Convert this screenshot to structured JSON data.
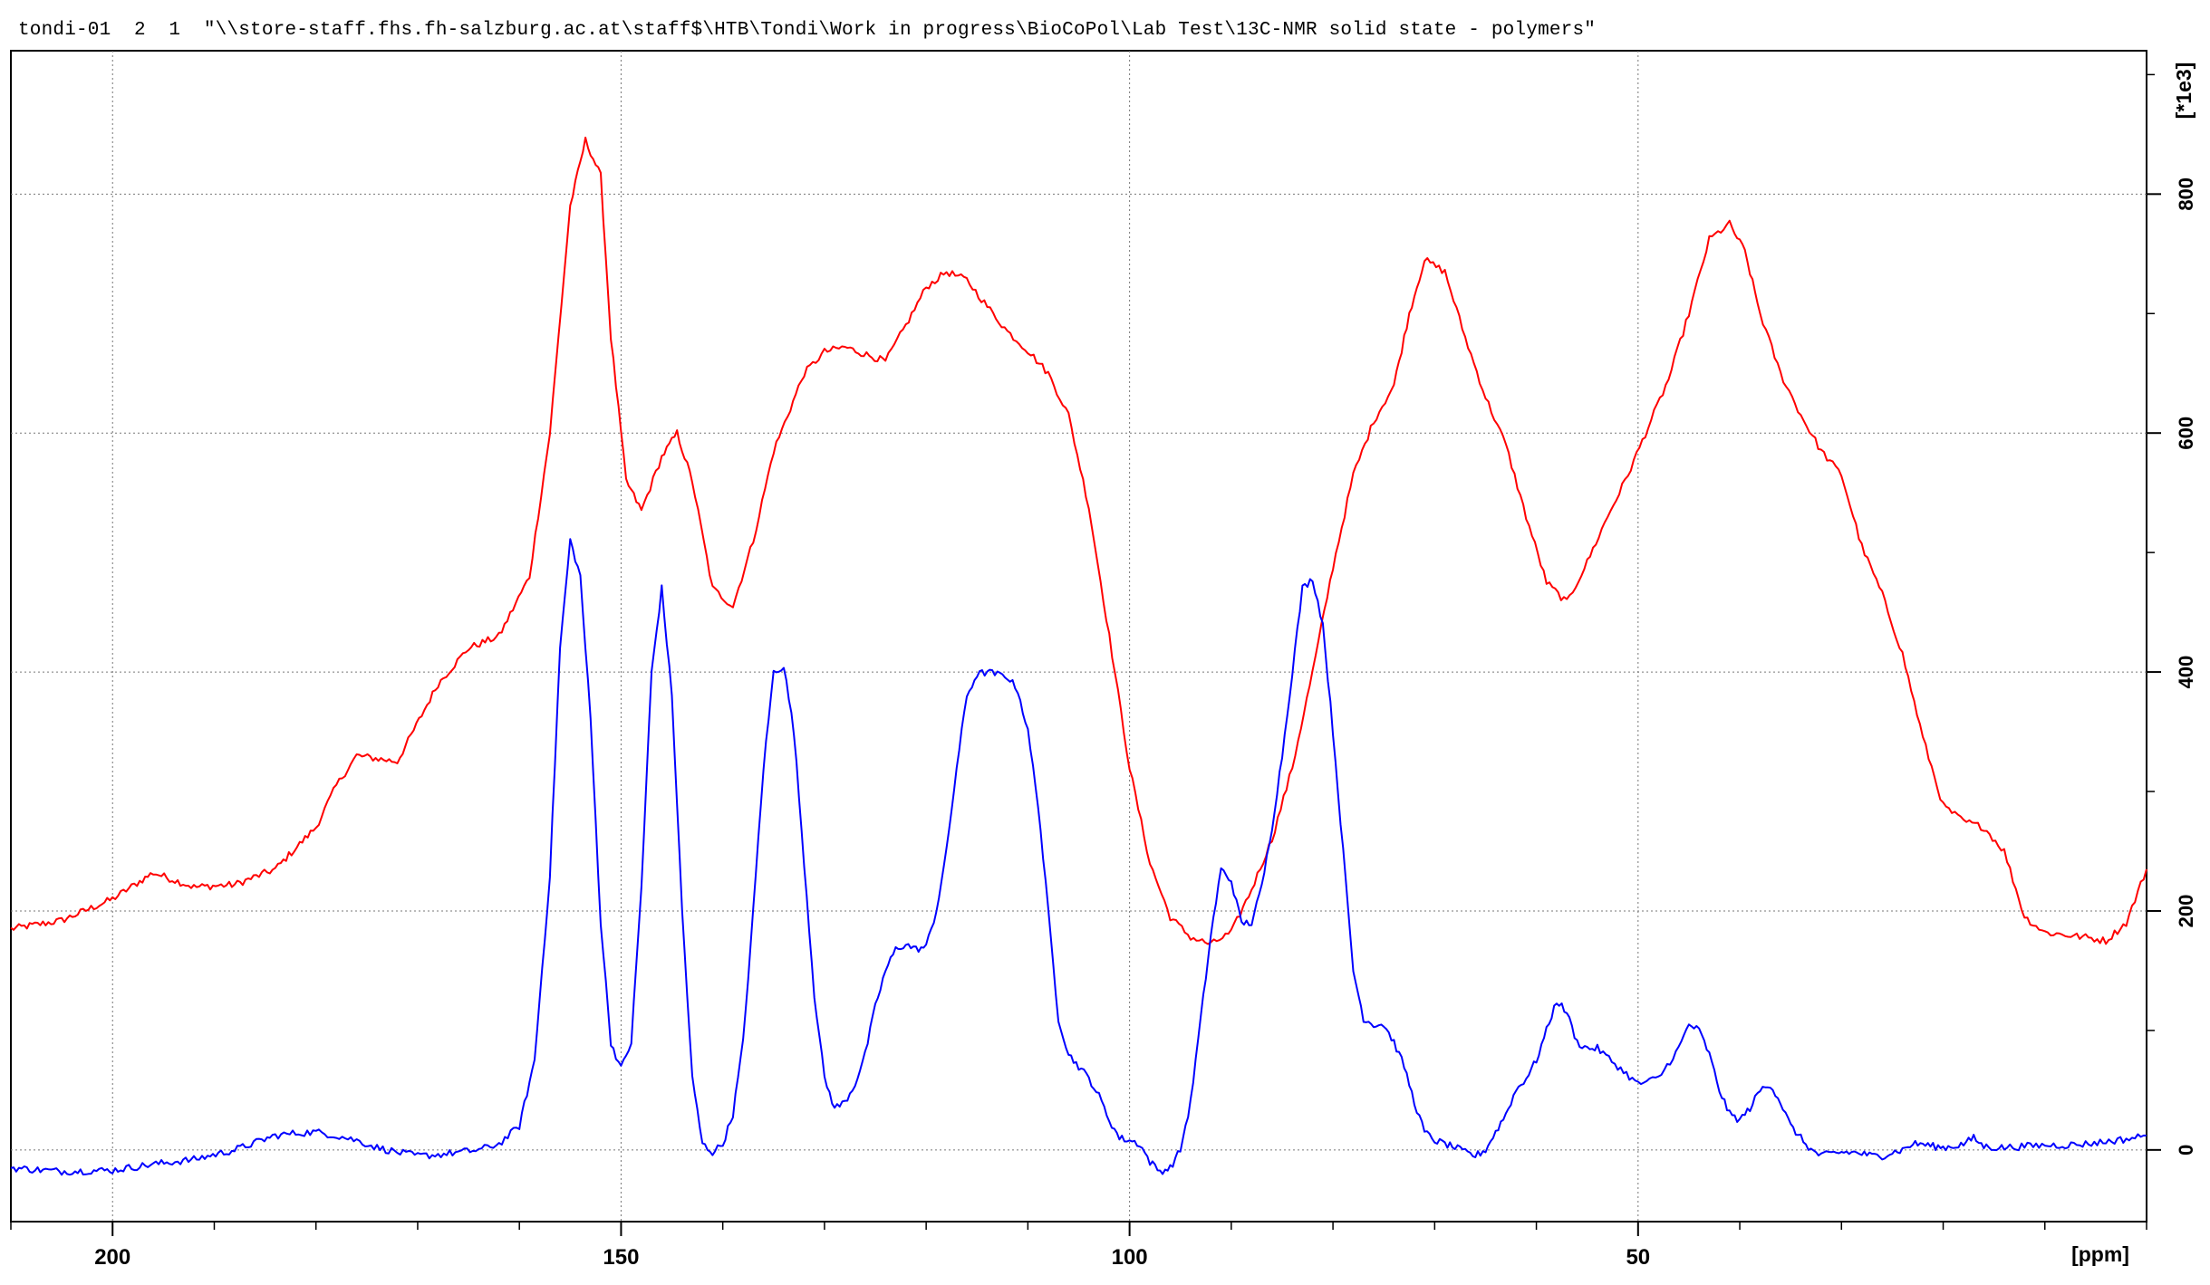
{
  "header": {
    "text": "tondi-01  2  1  \"\\\\store-staff.fhs.fh-salzburg.ac.at\\staff$\\HTB\\Tondi\\Work in progress\\BioCoPol\\Lab Test\\13C-NMR solid state - polymers\""
  },
  "colors": {
    "series_red": "#ff0000",
    "series_blue": "#0000ff",
    "axis": "#000000",
    "grid": "#777777"
  },
  "chart_data": {
    "type": "line",
    "title": "",
    "xlabel": "[ppm]",
    "ylabel": "[*1e3]",
    "x_reversed": true,
    "xlim": [
      210,
      0
    ],
    "ylim": [
      -60,
      920
    ],
    "grid": true,
    "x_ticks": [
      200,
      150,
      100,
      50
    ],
    "x_tick_labels": [
      "200",
      "150",
      "100",
      "50"
    ],
    "y_ticks": [
      0,
      200,
      400,
      600,
      800
    ],
    "y_tick_labels": [
      "0",
      "200",
      "400",
      "600",
      "800"
    ],
    "series": [
      {
        "color": "#ff0000",
        "x": [
          210,
          205,
          200,
          196,
          192,
          188,
          184,
          180,
          178,
          176,
          172,
          168,
          165,
          162,
          159,
          157,
          155,
          153.5,
          152,
          151,
          149.5,
          148,
          146,
          144.5,
          143,
          141,
          139,
          137,
          135,
          132,
          130,
          128,
          124,
          122,
          120,
          118,
          116,
          114,
          112,
          110,
          108,
          106,
          104,
          102,
          100,
          98,
          96,
          94,
          92,
          90,
          88,
          86,
          84,
          82,
          80,
          78,
          76,
          74,
          72.5,
          71,
          69,
          67,
          65,
          63,
          61,
          59,
          57,
          55,
          53,
          51,
          49,
          47,
          45,
          43,
          41,
          39.5,
          38,
          36,
          34,
          32,
          30,
          28,
          26,
          24,
          22,
          20,
          18,
          16,
          14,
          12,
          10,
          8,
          6,
          4,
          2,
          0
        ],
        "y": [
          185,
          192,
          210,
          232,
          220,
          222,
          235,
          270,
          305,
          330,
          325,
          390,
          420,
          430,
          480,
          600,
          790,
          845,
          815,
          680,
          560,
          535,
          580,
          600,
          560,
          470,
          455,
          510,
          585,
          650,
          668,
          672,
          660,
          690,
          722,
          735,
          728,
          706,
          685,
          669,
          650,
          615,
          538,
          430,
          320,
          240,
          195,
          178,
          172,
          182,
          218,
          260,
          320,
          400,
          488,
          565,
          610,
          640,
          700,
          745,
          735,
          680,
          630,
          590,
          530,
          475,
          458,
          492,
          530,
          565,
          605,
          645,
          700,
          762,
          775,
          752,
          700,
          650,
          615,
          585,
          565,
          505,
          465,
          415,
          345,
          288,
          275,
          270,
          250,
          195,
          182,
          180,
          178,
          175,
          190,
          235
        ]
      },
      {
        "color": "#0000ff",
        "x": [
          210,
          205,
          200,
          196,
          192,
          188,
          184,
          182,
          180,
          178,
          176,
          174,
          172,
          170,
          168,
          166,
          164,
          162,
          160,
          158.5,
          157,
          156,
          155,
          154,
          153,
          152,
          151,
          150,
          149,
          148,
          147,
          146,
          145,
          144,
          143,
          142,
          141,
          140,
          139,
          138,
          137,
          136,
          135,
          134,
          133,
          132,
          131,
          130,
          129,
          128,
          127,
          126,
          125,
          124,
          123,
          122,
          121,
          120,
          119,
          118,
          117,
          116,
          115,
          114,
          113,
          112,
          111,
          110,
          109,
          108,
          107,
          106,
          105,
          104,
          103,
          102,
          101,
          100,
          99,
          98,
          97,
          96,
          95,
          94,
          93,
          92,
          91,
          90,
          89,
          88,
          87,
          86,
          85,
          84,
          83,
          82,
          81,
          80,
          79,
          78,
          77,
          76,
          75,
          74,
          73,
          72,
          71,
          70,
          69,
          68,
          67,
          66,
          65,
          64,
          63,
          62,
          61,
          60,
          59,
          58,
          57,
          56,
          55,
          54,
          52,
          50,
          48,
          46,
          45,
          44,
          43,
          42,
          41,
          40,
          39,
          38,
          37,
          36,
          35,
          34,
          33,
          32,
          31,
          30,
          29,
          28,
          27,
          26,
          25,
          24,
          23,
          22,
          21,
          20,
          19,
          18,
          17,
          16,
          15,
          14,
          12,
          10,
          8,
          6,
          4,
          2,
          0
        ],
        "y": [
          -15,
          -18,
          -17,
          -12,
          -8,
          0,
          12,
          14,
          15,
          12,
          8,
          2,
          -2,
          -5,
          -4,
          -2,
          0,
          5,
          20,
          75,
          230,
          420,
          510,
          480,
          360,
          190,
          90,
          68,
          90,
          220,
          400,
          470,
          380,
          200,
          60,
          5,
          -2,
          5,
          30,
          90,
          200,
          320,
          400,
          405,
          350,
          240,
          130,
          60,
          35,
          40,
          55,
          80,
          120,
          150,
          168,
          172,
          168,
          170,
          200,
          250,
          320,
          380,
          398,
          400,
          398,
          396,
          385,
          350,
          290,
          200,
          110,
          80,
          70,
          60,
          45,
          25,
          10,
          8,
          5,
          -10,
          -18,
          -15,
          0,
          40,
          110,
          180,
          235,
          225,
          190,
          190,
          220,
          270,
          330,
          400,
          470,
          478,
          440,
          350,
          250,
          150,
          110,
          105,
          105,
          90,
          70,
          40,
          15,
          8,
          5,
          2,
          -2,
          -5,
          0,
          15,
          30,
          50,
          60,
          75,
          100,
          125,
          115,
          90,
          85,
          85,
          70,
          55,
          60,
          85,
          105,
          100,
          80,
          50,
          30,
          25,
          35,
          50,
          55,
          40,
          20,
          10,
          0,
          -5,
          -3,
          -2,
          -2,
          -3,
          -5,
          -5,
          -2,
          0,
          5,
          5,
          3,
          2,
          3,
          5,
          10,
          3,
          2,
          2,
          3,
          4,
          4,
          5,
          7,
          9,
          12
        ]
      }
    ]
  }
}
